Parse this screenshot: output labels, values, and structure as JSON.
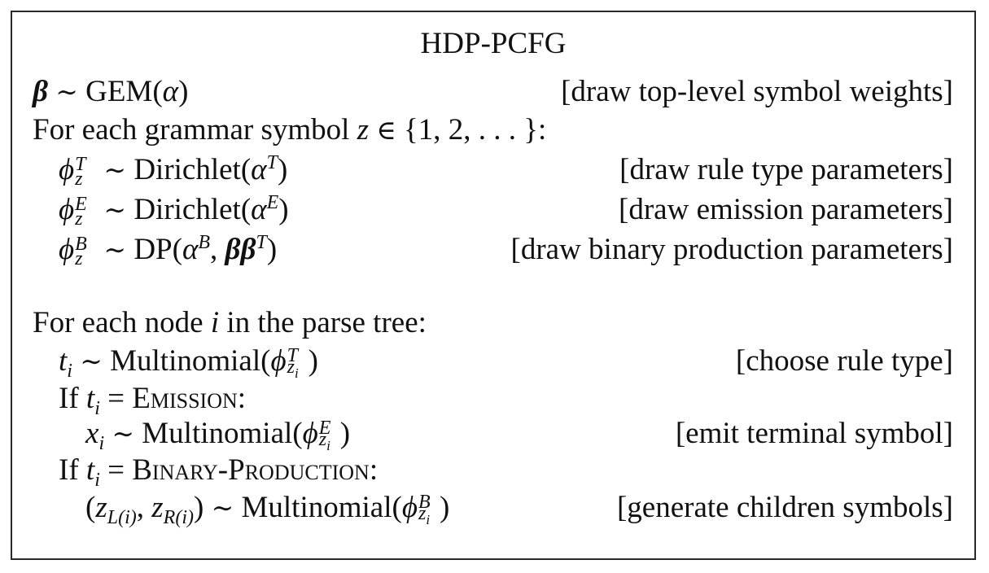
{
  "title": "HDP-PCFG",
  "lines": [
    {
      "comment": "[draw top-level symbol weights]"
    },
    {
      "text": "For each grammar symbol"
    },
    {
      "comment": "[draw rule type parameters]"
    },
    {
      "comment": "[draw emission parameters]"
    },
    {
      "comment": "[draw binary production parameters]"
    },
    {
      "text": "For each node"
    },
    {
      "text_suffix": "in the parse tree:"
    },
    {
      "comment": "[choose rule type]"
    },
    {
      "comment": "[emit terminal symbol]"
    },
    {
      "comment": "[generate children symbols]"
    }
  ],
  "labels": {
    "gem": "GEM",
    "dirichlet": "Dirichlet",
    "dp": "DP",
    "multinomial": "Multinomial",
    "if": "If",
    "emission": "Emission",
    "binary_production": "Binary-Production"
  }
}
